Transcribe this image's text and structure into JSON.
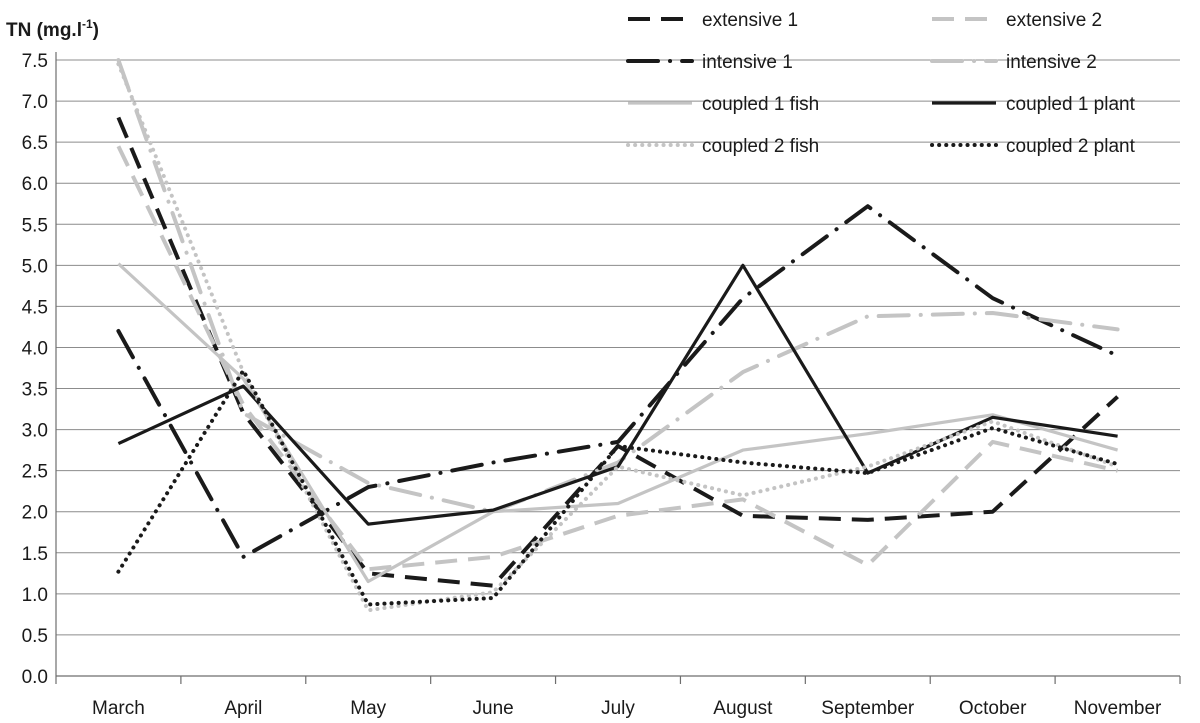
{
  "chart_data": {
    "type": "line",
    "ylabel": "TN (mg.l",
    "ylabel_sup": "-1",
    "ylabel_close": ")",
    "ylim": [
      0,
      7.5
    ],
    "yticks": [
      "0.0",
      "0.5",
      "1.0",
      "1.5",
      "2.0",
      "2.5",
      "3.0",
      "3.5",
      "4.0",
      "4.5",
      "5.0",
      "5.5",
      "6.0",
      "6.5",
      "7.0",
      "7.5"
    ],
    "grid": "horizontal",
    "legend_position": "top-right",
    "categories": [
      "March",
      "April",
      "May",
      "June",
      "July",
      "August",
      "September",
      "October",
      "November"
    ],
    "series": [
      {
        "name": "extensive 1",
        "color": "#1a1a1a",
        "style": "dash",
        "values": [
          6.8,
          3.2,
          1.25,
          1.1,
          2.8,
          1.95,
          1.9,
          2.0,
          3.4
        ]
      },
      {
        "name": "extensive 2",
        "color": "#c4c4c4",
        "style": "dash",
        "values": [
          6.45,
          3.3,
          1.3,
          1.45,
          1.95,
          2.15,
          1.35,
          2.85,
          2.5
        ]
      },
      {
        "name": "intensive 1",
        "color": "#1a1a1a",
        "style": "dashdot",
        "values": [
          4.2,
          1.45,
          2.3,
          2.6,
          2.85,
          4.6,
          5.72,
          4.6,
          3.9
        ]
      },
      {
        "name": "intensive 2",
        "color": "#c4c4c4",
        "style": "dashdot",
        "values": [
          7.5,
          3.2,
          2.35,
          2.0,
          2.6,
          3.7,
          4.38,
          4.42,
          4.22
        ]
      },
      {
        "name": "coupled 1 fish",
        "color": "#c4c4c4",
        "style": "solid",
        "values": [
          5.02,
          3.62,
          1.15,
          2.0,
          2.1,
          2.75,
          2.95,
          3.18,
          2.75
        ]
      },
      {
        "name": "coupled 1 plant",
        "color": "#1a1a1a",
        "style": "solid",
        "values": [
          2.83,
          3.53,
          1.85,
          2.02,
          2.55,
          5.0,
          2.47,
          3.15,
          2.92
        ]
      },
      {
        "name": "coupled 2 fish",
        "color": "#c4c4c4",
        "style": "dot",
        "values": [
          7.45,
          3.7,
          0.8,
          1.02,
          2.55,
          2.2,
          2.55,
          3.1,
          2.55
        ]
      },
      {
        "name": "coupled 2 plant",
        "color": "#1a1a1a",
        "style": "dot",
        "values": [
          1.27,
          3.72,
          0.87,
          0.95,
          2.8,
          2.6,
          2.47,
          3.02,
          2.58
        ]
      }
    ]
  }
}
